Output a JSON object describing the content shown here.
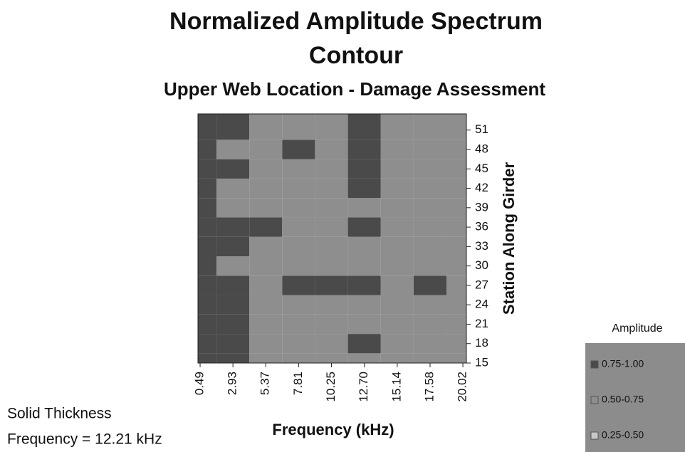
{
  "chart_data": {
    "type": "contour",
    "title": [
      "Normalized Amplitude Spectrum",
      "Contour"
    ],
    "subtitle": "Upper Web Location - Damage Assessment",
    "xlabel": "Frequency (kHz)",
    "ylabel": "Station Along Girder",
    "annotations": [
      "Solid Thickness",
      "Frequency = 12.21 kHz"
    ],
    "x": [
      0.49,
      2.93,
      5.37,
      7.81,
      10.25,
      12.7,
      15.14,
      17.58,
      20.02
    ],
    "y": [
      15,
      18,
      21,
      24,
      27,
      30,
      33,
      36,
      39,
      42,
      45,
      48,
      51
    ],
    "z": [
      [
        0.85,
        0.85,
        0.6,
        0.6,
        0.6,
        0.6,
        0.6,
        0.6,
        0.6
      ],
      [
        0.85,
        0.85,
        0.6,
        0.6,
        0.6,
        0.85,
        0.6,
        0.6,
        0.6
      ],
      [
        0.85,
        0.85,
        0.6,
        0.6,
        0.6,
        0.6,
        0.6,
        0.6,
        0.6
      ],
      [
        0.85,
        0.85,
        0.6,
        0.6,
        0.6,
        0.6,
        0.6,
        0.6,
        0.6
      ],
      [
        0.85,
        0.85,
        0.6,
        0.85,
        0.85,
        0.85,
        0.6,
        0.85,
        0.6
      ],
      [
        0.85,
        0.6,
        0.6,
        0.6,
        0.6,
        0.6,
        0.6,
        0.6,
        0.6
      ],
      [
        0.85,
        0.85,
        0.6,
        0.6,
        0.6,
        0.6,
        0.6,
        0.6,
        0.6
      ],
      [
        0.85,
        0.85,
        0.85,
        0.6,
        0.6,
        0.85,
        0.6,
        0.6,
        0.6
      ],
      [
        0.85,
        0.6,
        0.6,
        0.6,
        0.6,
        0.6,
        0.6,
        0.6,
        0.6
      ],
      [
        0.85,
        0.6,
        0.6,
        0.6,
        0.6,
        0.85,
        0.6,
        0.6,
        0.6
      ],
      [
        0.85,
        0.85,
        0.6,
        0.6,
        0.6,
        0.85,
        0.6,
        0.6,
        0.6
      ],
      [
        0.85,
        0.6,
        0.6,
        0.85,
        0.6,
        0.85,
        0.6,
        0.6,
        0.6
      ],
      [
        0.85,
        0.85,
        0.6,
        0.6,
        0.6,
        0.85,
        0.6,
        0.6,
        0.6
      ]
    ],
    "xlim": [
      0.33,
      20.28
    ],
    "ylim": [
      15,
      53.5
    ],
    "xticks": [
      0.49,
      2.93,
      5.37,
      7.81,
      10.25,
      {
        "value": 12.7,
        "label": "12.70"
      },
      15.14,
      17.58,
      20.02
    ],
    "yticks": [
      15,
      18,
      21,
      24,
      27,
      30,
      33,
      36,
      39,
      42,
      45,
      48,
      51
    ],
    "legend": {
      "title": "Amplitude",
      "levels": [
        {
          "min": 0.75,
          "max": 1.0,
          "label": "0.75-1.00",
          "color": "#4a4a4a"
        },
        {
          "min": 0.5,
          "max": 0.75,
          "label": "0.50-0.75",
          "color": "#8e8e8e"
        },
        {
          "min": 0.25,
          "max": 0.5,
          "label": "0.25-0.50",
          "color": "#c8c8c8"
        }
      ]
    }
  }
}
